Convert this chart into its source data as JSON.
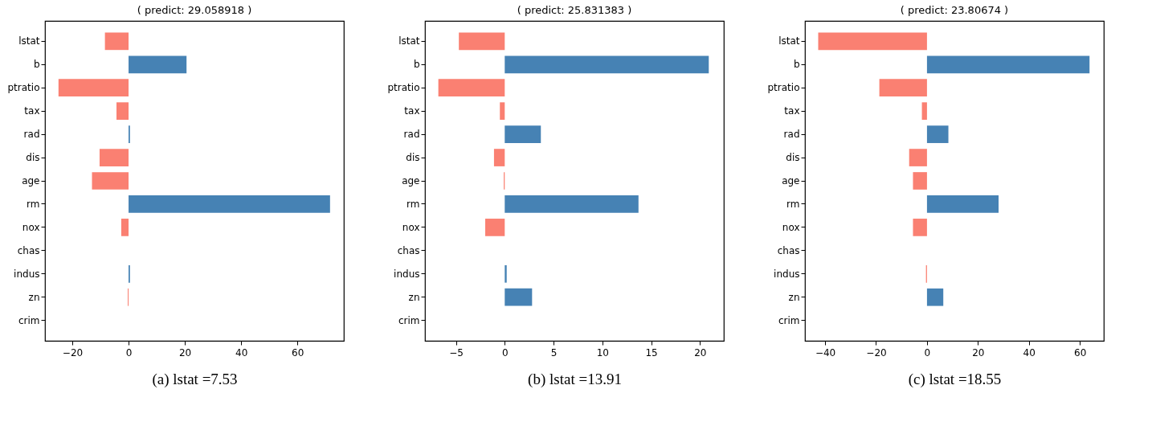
{
  "chart_data": [
    {
      "type": "bar",
      "orientation": "horizontal",
      "title": "( predict: 29.058918 )",
      "xlabel": "(a) lstat =7.53",
      "categories": [
        "lstat",
        "b",
        "ptratio",
        "tax",
        "rad",
        "dis",
        "age",
        "rm",
        "nox",
        "chas",
        "indus",
        "zn",
        "crim"
      ],
      "values": [
        -8.4,
        20.6,
        -24.9,
        -4.3,
        0.5,
        -10.3,
        -13.0,
        71.6,
        -2.6,
        0,
        0.5,
        -0.3,
        0
      ],
      "colors": [
        "#fa8072",
        "#4682b4",
        "#fa8072",
        "#fa8072",
        "#4682b4",
        "#fa8072",
        "#fa8072",
        "#4682b4",
        "#fa8072",
        "#4682b4",
        "#4682b4",
        "#fa8072",
        "#4682b4"
      ],
      "xlim": [
        -29.7,
        76.5
      ],
      "xticks": [
        -20,
        0,
        20,
        40,
        60
      ],
      "grid": false
    },
    {
      "type": "bar",
      "orientation": "horizontal",
      "title": "( predict: 25.831383 )",
      "xlabel": "(b) lstat =13.91",
      "categories": [
        "lstat",
        "b",
        "ptratio",
        "tax",
        "rad",
        "dis",
        "age",
        "rm",
        "nox",
        "chas",
        "indus",
        "zn",
        "crim"
      ],
      "values": [
        -4.7,
        20.9,
        -6.8,
        -0.5,
        3.7,
        -1.1,
        -0.1,
        13.7,
        -2.0,
        0,
        0.2,
        2.8,
        0
      ],
      "colors": [
        "#fa8072",
        "#4682b4",
        "#fa8072",
        "#fa8072",
        "#4682b4",
        "#fa8072",
        "#fa8072",
        "#4682b4",
        "#fa8072",
        "#4682b4",
        "#4682b4",
        "#4682b4",
        "#4682b4"
      ],
      "xlim": [
        -8.17,
        22.44
      ],
      "xticks": [
        -5,
        0,
        5,
        10,
        15,
        20
      ],
      "grid": false
    },
    {
      "type": "bar",
      "orientation": "horizontal",
      "title": "( predict: 23.80674 )",
      "xlabel": "(c) lstat =18.55",
      "categories": [
        "lstat",
        "b",
        "ptratio",
        "tax",
        "rad",
        "dis",
        "age",
        "rm",
        "nox",
        "chas",
        "indus",
        "zn",
        "crim"
      ],
      "values": [
        -42.7,
        63.8,
        -18.7,
        -2.0,
        8.4,
        -7.0,
        -5.5,
        28.1,
        -5.5,
        0,
        -0.4,
        6.4,
        0
      ],
      "colors": [
        "#fa8072",
        "#4682b4",
        "#fa8072",
        "#fa8072",
        "#4682b4",
        "#fa8072",
        "#fa8072",
        "#4682b4",
        "#fa8072",
        "#4682b4",
        "#fa8072",
        "#4682b4",
        "#4682b4"
      ],
      "xlim": [
        -47.9,
        69.4
      ],
      "xticks": [
        -40,
        -20,
        0,
        20,
        40,
        60
      ],
      "grid": false
    }
  ]
}
